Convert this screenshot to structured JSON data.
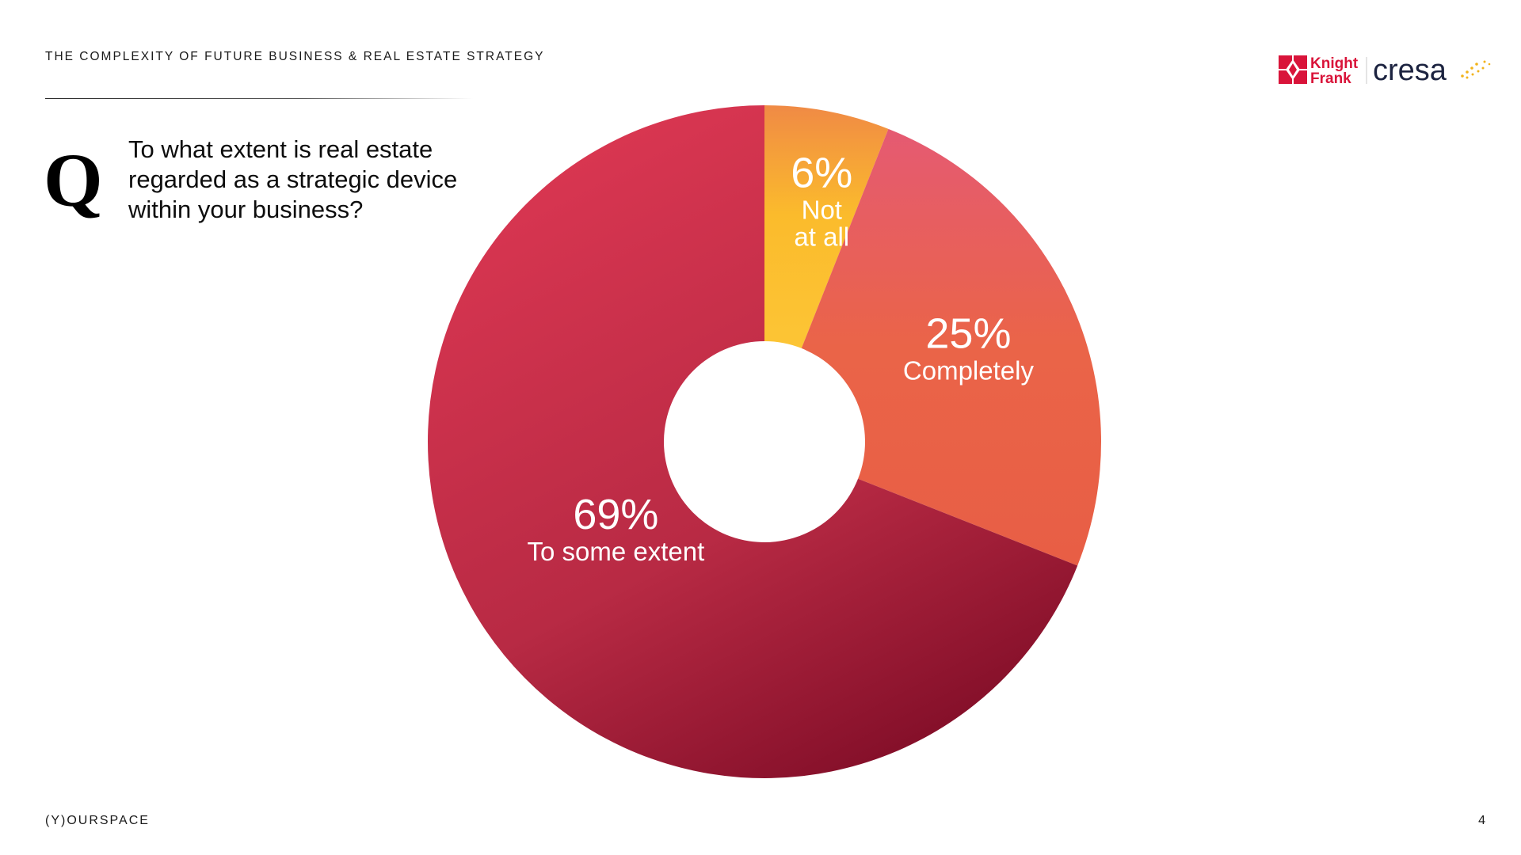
{
  "header": {
    "title": "THE COMPLEXITY OF FUTURE BUSINESS & REAL ESTATE STRATEGY"
  },
  "question": {
    "mark": "Q",
    "text": "To what extent is real estate regarded as a strategic device within your business?"
  },
  "logos": {
    "knight_frank_line1": "Knight",
    "knight_frank_line2": "Frank",
    "cresa": "cresa"
  },
  "footer": {
    "brand": "(Y)OURSPACE",
    "page_number": "4"
  },
  "colors": {
    "not_at_all": "#fbbb2c",
    "completely": "#ea6448",
    "to_some_extent": "#b0253f",
    "knight_frank_red": "#d9143a",
    "cresa_navy": "#1c2340",
    "cresa_accent": "#f2b31b"
  },
  "chart_data": {
    "type": "pie",
    "donut": true,
    "legend": "none",
    "title": "",
    "slices": [
      {
        "label": "Not at all",
        "label_lines": [
          "Not",
          "at all"
        ],
        "value": 6,
        "value_label": "6%"
      },
      {
        "label": "Completely",
        "label_lines": [
          "Completely"
        ],
        "value": 25,
        "value_label": "25%"
      },
      {
        "label": "To some extent",
        "label_lines": [
          "To some extent"
        ],
        "value": 69,
        "value_label": "69%"
      }
    ]
  }
}
